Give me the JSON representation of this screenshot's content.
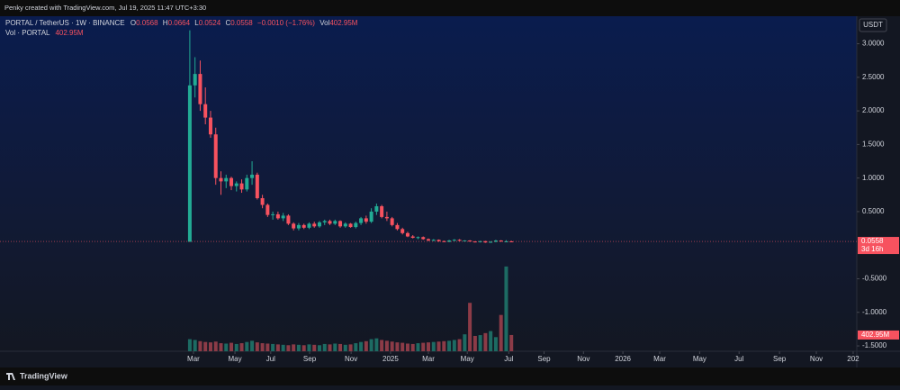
{
  "header": {
    "credit": "Penky created with TradingView.com, Jul 19, 2025 11:47 UTC+3:30",
    "symbol": "PORTAL / TetherUS · 1W · BINANCE",
    "ohlc_letters": [
      "O",
      "H",
      "L",
      "C"
    ],
    "change": "−0.0010 (−1.76%)",
    "vol_prefix": "Vol",
    "vol_title": "Vol · PORTAL",
    "currency": "USDT",
    "countdown": "3d 16h",
    "brand": "TradingView"
  },
  "chart_data": {
    "type": "candlestick",
    "open": [
      0.05,
      2.38,
      2.55,
      2.1,
      1.9,
      1.65,
      1.0,
      0.95,
      1.0,
      0.88,
      0.92,
      0.83,
      1.0,
      1.05,
      0.7,
      0.6,
      0.45,
      0.46,
      0.4,
      0.44,
      0.32,
      0.25,
      0.3,
      0.26,
      0.32,
      0.28,
      0.34,
      0.36,
      0.32,
      0.36,
      0.28,
      0.32,
      0.27,
      0.33,
      0.4,
      0.35,
      0.5,
      0.58,
      0.42,
      0.4,
      0.3,
      0.24,
      0.18,
      0.13,
      0.11,
      0.12,
      0.09,
      0.07,
      0.08,
      0.06,
      0.05,
      0.07,
      0.08,
      0.065,
      0.07,
      0.055,
      0.045,
      0.06,
      0.04,
      0.05,
      0.07,
      0.055,
      0.0568
    ],
    "high": [
      3.2,
      2.8,
      2.75,
      2.35,
      2.0,
      1.75,
      1.1,
      1.05,
      1.02,
      0.95,
      0.98,
      1.05,
      1.25,
      1.08,
      0.75,
      0.62,
      0.5,
      0.5,
      0.48,
      0.46,
      0.34,
      0.33,
      0.32,
      0.34,
      0.35,
      0.36,
      0.38,
      0.38,
      0.38,
      0.37,
      0.34,
      0.33,
      0.35,
      0.42,
      0.44,
      0.55,
      0.62,
      0.6,
      0.5,
      0.42,
      0.33,
      0.26,
      0.2,
      0.15,
      0.13,
      0.13,
      0.1,
      0.09,
      0.085,
      0.07,
      0.08,
      0.09,
      0.09,
      0.075,
      0.075,
      0.06,
      0.065,
      0.065,
      0.06,
      0.08,
      0.075,
      0.075,
      0.0664
    ],
    "low": [
      0.05,
      2.2,
      2.0,
      1.8,
      1.6,
      0.9,
      0.75,
      0.85,
      0.82,
      0.8,
      0.78,
      0.8,
      0.9,
      0.68,
      0.55,
      0.42,
      0.38,
      0.38,
      0.36,
      0.3,
      0.22,
      0.22,
      0.24,
      0.24,
      0.26,
      0.26,
      0.3,
      0.3,
      0.3,
      0.26,
      0.26,
      0.26,
      0.25,
      0.3,
      0.32,
      0.33,
      0.45,
      0.4,
      0.36,
      0.28,
      0.22,
      0.16,
      0.12,
      0.1,
      0.09,
      0.08,
      0.06,
      0.06,
      0.05,
      0.045,
      0.045,
      0.06,
      0.06,
      0.055,
      0.05,
      0.04,
      0.04,
      0.035,
      0.035,
      0.045,
      0.05,
      0.05,
      0.0524
    ],
    "close": [
      2.38,
      2.55,
      2.1,
      1.9,
      1.65,
      1.0,
      0.95,
      1.0,
      0.88,
      0.92,
      0.83,
      1.0,
      1.05,
      0.7,
      0.6,
      0.45,
      0.46,
      0.4,
      0.44,
      0.32,
      0.25,
      0.3,
      0.26,
      0.32,
      0.28,
      0.34,
      0.36,
      0.32,
      0.36,
      0.28,
      0.32,
      0.27,
      0.33,
      0.4,
      0.35,
      0.5,
      0.58,
      0.42,
      0.4,
      0.3,
      0.24,
      0.18,
      0.13,
      0.11,
      0.12,
      0.09,
      0.07,
      0.08,
      0.06,
      0.05,
      0.07,
      0.08,
      0.065,
      0.07,
      0.055,
      0.045,
      0.06,
      0.04,
      0.05,
      0.07,
      0.055,
      0.0568,
      0.0558
    ],
    "volume": [
      300,
      280,
      250,
      230,
      220,
      240,
      200,
      190,
      210,
      180,
      200,
      230,
      260,
      220,
      200,
      190,
      180,
      170,
      160,
      150,
      170,
      160,
      150,
      170,
      160,
      150,
      180,
      170,
      190,
      180,
      160,
      170,
      200,
      230,
      250,
      300,
      320,
      280,
      260,
      240,
      220,
      210,
      190,
      180,
      200,
      210,
      220,
      230,
      240,
      250,
      260,
      280,
      300,
      420,
      1200,
      380,
      400,
      450,
      500,
      350,
      900,
      2100,
      402.95
    ],
    "volume_label": "402.95M",
    "up_color": "#22ab94",
    "down_color": "#f7525f",
    "volume_up_color": "#1d6b63",
    "volume_down_color": "#8c3b47",
    "xlim": [
      -36.6,
      128.6
    ],
    "xticks": [
      {
        "value": 0.7,
        "label": "Mar"
      },
      {
        "value": 8.7,
        "label": "May"
      },
      {
        "value": 15.6,
        "label": "Jul"
      },
      {
        "value": 23.1,
        "label": "Sep"
      },
      {
        "value": 31.1,
        "label": "Nov"
      },
      {
        "value": 38.7,
        "label": "2025"
      },
      {
        "value": 46,
        "label": "Mar"
      },
      {
        "value": 53.5,
        "label": "May"
      },
      {
        "value": 61.5,
        "label": "Jul"
      },
      {
        "value": 68.3,
        "label": "Sep"
      },
      {
        "value": 75.9,
        "label": "Nov"
      },
      {
        "value": 83.5,
        "label": "2026"
      },
      {
        "value": 90.6,
        "label": "Mar"
      },
      {
        "value": 98.3,
        "label": "May"
      },
      {
        "value": 105.9,
        "label": "Jul"
      },
      {
        "value": 113.7,
        "label": "Sep"
      },
      {
        "value": 120.8,
        "label": "Nov"
      },
      {
        "value": 127.9,
        "label": "202"
      }
    ],
    "ylim": [
      -1.58,
      3.41
    ],
    "yticks": [
      {
        "value": -1.5,
        "label": "-1.5000"
      },
      {
        "value": -1,
        "label": "-1.0000"
      },
      {
        "value": -0.5,
        "label": "-0.5000"
      },
      {
        "value": 0.5,
        "label": "0.5000"
      },
      {
        "value": 1,
        "label": "1.0000"
      },
      {
        "value": 1.5,
        "label": "1.5000"
      },
      {
        "value": 2,
        "label": "2.0000"
      },
      {
        "value": 2.5,
        "label": "2.5000"
      },
      {
        "value": 3,
        "label": "3.0000"
      }
    ],
    "volume_ylim": [
      0,
      8300
    ]
  }
}
